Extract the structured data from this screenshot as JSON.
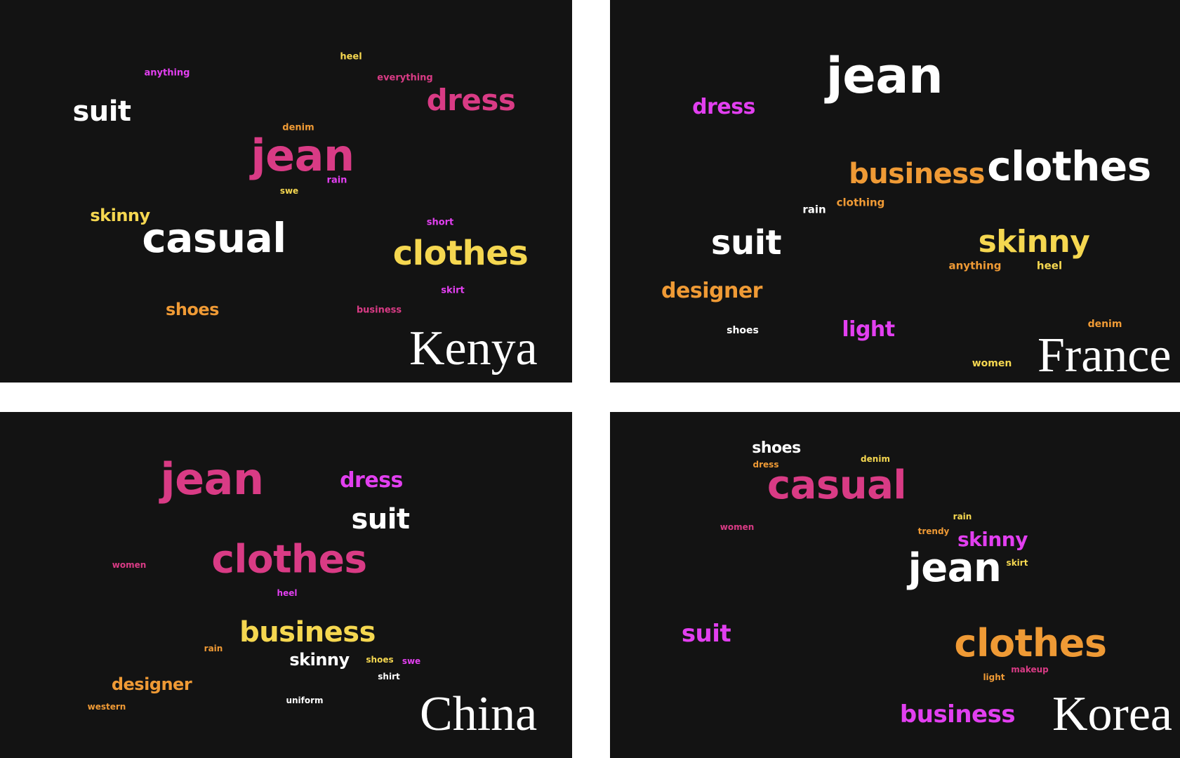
{
  "colors": {
    "background": "#131313",
    "white": "#ffffff",
    "pink": "#d93b85",
    "magenta": "#e23ff0",
    "yellow": "#f5d750",
    "orange": "#ef9a35"
  },
  "panels": [
    {
      "id": "kenya",
      "country": "Kenya",
      "words": [
        {
          "text": "jean",
          "color": "pink"
        },
        {
          "text": "casual",
          "color": "white"
        },
        {
          "text": "clothes",
          "color": "yellow"
        },
        {
          "text": "suit",
          "color": "white"
        },
        {
          "text": "dress",
          "color": "pink"
        },
        {
          "text": "skinny",
          "color": "yellow"
        },
        {
          "text": "shoes",
          "color": "orange"
        },
        {
          "text": "anything",
          "color": "magenta"
        },
        {
          "text": "heel",
          "color": "yellow"
        },
        {
          "text": "everything",
          "color": "pink"
        },
        {
          "text": "denim",
          "color": "orange"
        },
        {
          "text": "rain",
          "color": "magenta"
        },
        {
          "text": "swe",
          "color": "yellow"
        },
        {
          "text": "short",
          "color": "magenta"
        },
        {
          "text": "skirt",
          "color": "magenta"
        },
        {
          "text": "business",
          "color": "pink"
        }
      ]
    },
    {
      "id": "france",
      "country": "France",
      "words": [
        {
          "text": "jean",
          "color": "white"
        },
        {
          "text": "clothes",
          "color": "white"
        },
        {
          "text": "business",
          "color": "orange"
        },
        {
          "text": "dress",
          "color": "magenta"
        },
        {
          "text": "suit",
          "color": "white"
        },
        {
          "text": "skinny",
          "color": "yellow"
        },
        {
          "text": "designer",
          "color": "orange"
        },
        {
          "text": "light",
          "color": "magenta"
        },
        {
          "text": "rain",
          "color": "white"
        },
        {
          "text": "clothing",
          "color": "orange"
        },
        {
          "text": "anything",
          "color": "orange"
        },
        {
          "text": "heel",
          "color": "yellow"
        },
        {
          "text": "shoes",
          "color": "white"
        },
        {
          "text": "denim",
          "color": "orange"
        },
        {
          "text": "women",
          "color": "yellow"
        }
      ]
    },
    {
      "id": "china",
      "country": "China",
      "words": [
        {
          "text": "jean",
          "color": "pink"
        },
        {
          "text": "dress",
          "color": "magenta"
        },
        {
          "text": "suit",
          "color": "white"
        },
        {
          "text": "clothes",
          "color": "pink"
        },
        {
          "text": "women",
          "color": "pink"
        },
        {
          "text": "heel",
          "color": "magenta"
        },
        {
          "text": "business",
          "color": "yellow"
        },
        {
          "text": "rain",
          "color": "orange"
        },
        {
          "text": "skinny",
          "color": "white"
        },
        {
          "text": "shoes",
          "color": "yellow"
        },
        {
          "text": "swe",
          "color": "magenta"
        },
        {
          "text": "shirt",
          "color": "white"
        },
        {
          "text": "designer",
          "color": "orange"
        },
        {
          "text": "western",
          "color": "orange"
        },
        {
          "text": "uniform",
          "color": "white"
        }
      ]
    },
    {
      "id": "korea",
      "country": "Korea",
      "words": [
        {
          "text": "shoes",
          "color": "white"
        },
        {
          "text": "denim",
          "color": "yellow"
        },
        {
          "text": "dress",
          "color": "orange"
        },
        {
          "text": "casual",
          "color": "pink"
        },
        {
          "text": "women",
          "color": "pink"
        },
        {
          "text": "rain",
          "color": "yellow"
        },
        {
          "text": "trendy",
          "color": "orange"
        },
        {
          "text": "skinny",
          "color": "magenta"
        },
        {
          "text": "skirt",
          "color": "yellow"
        },
        {
          "text": "jean",
          "color": "white"
        },
        {
          "text": "suit",
          "color": "magenta"
        },
        {
          "text": "clothes",
          "color": "orange"
        },
        {
          "text": "makeup",
          "color": "pink"
        },
        {
          "text": "light",
          "color": "orange"
        },
        {
          "text": "business",
          "color": "magenta"
        }
      ]
    }
  ]
}
